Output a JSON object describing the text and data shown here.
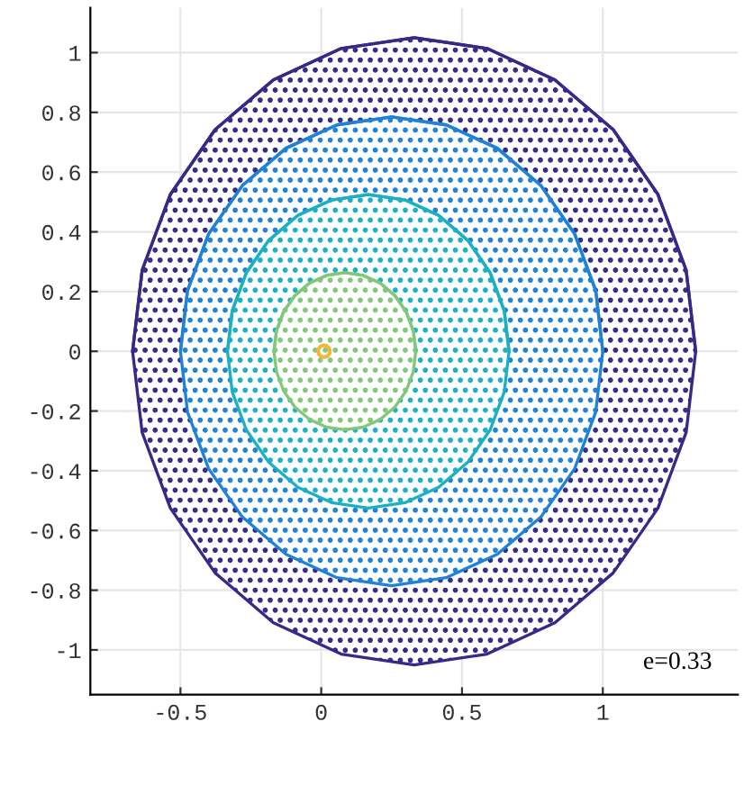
{
  "chart_data": {
    "type": "line",
    "xlim": [
      -0.82,
      1.48
    ],
    "ylim": [
      -1.15,
      1.15
    ],
    "xticks": [
      -0.5,
      0,
      0.5,
      1
    ],
    "yticks": [
      -1,
      -0.8,
      -0.6,
      -0.4,
      -0.2,
      0,
      0.2,
      0.4,
      0.6,
      0.8,
      1
    ],
    "grid": true,
    "marker": "none",
    "line_style": "solid",
    "annotations": [
      "e=0.33"
    ],
    "series": [
      {
        "color": "#352a87",
        "x": [
          -0.67,
          -0.636,
          -0.536,
          -0.377,
          -0.17,
          0.071,
          0.33,
          0.589,
          0.83,
          1.037,
          1.196,
          1.296,
          1.33
        ],
        "values": [
          0,
          0.272,
          0.525,
          0.742,
          0.909,
          1.014,
          1.05,
          1.014,
          0.909,
          0.742,
          0.525,
          0.272,
          0
        ],
        "upper": [
          0,
          0.272,
          0.525,
          0.742,
          0.909,
          1.014,
          1.05,
          1.014,
          0.909,
          0.742,
          0.525,
          0.272,
          0
        ],
        "lower": [
          0,
          -0.272,
          -0.525,
          -0.742,
          -0.909,
          -1.014,
          -1.05,
          -1.014,
          -0.909,
          -0.742,
          -0.525,
          -0.272,
          0
        ]
      },
      {
        "color": "#1f82d8",
        "x": [
          -0.5,
          -0.475,
          -0.4,
          -0.28,
          -0.125,
          0.056,
          0.25,
          0.444,
          0.625,
          0.78,
          0.9,
          0.975,
          1.0
        ],
        "values": [
          0,
          0.203,
          0.393,
          0.555,
          0.68,
          0.758,
          0.785,
          0.758,
          0.68,
          0.555,
          0.393,
          0.203,
          0
        ],
        "upper": [
          0,
          0.203,
          0.393,
          0.555,
          0.68,
          0.758,
          0.785,
          0.758,
          0.68,
          0.555,
          0.393,
          0.203,
          0
        ],
        "lower": [
          0,
          -0.203,
          -0.393,
          -0.555,
          -0.68,
          -0.758,
          -0.785,
          -0.758,
          -0.68,
          -0.555,
          -0.393,
          -0.203,
          0
        ]
      },
      {
        "color": "#1bb0c4",
        "x": [
          -0.333,
          -0.316,
          -0.266,
          -0.187,
          -0.083,
          0.038,
          0.167,
          0.297,
          0.417,
          0.521,
          0.6,
          0.65,
          0.667
        ],
        "values": [
          0,
          0.136,
          0.263,
          0.371,
          0.455,
          0.507,
          0.525,
          0.507,
          0.455,
          0.371,
          0.263,
          0.136,
          0
        ],
        "upper": [
          0,
          0.136,
          0.263,
          0.371,
          0.455,
          0.507,
          0.525,
          0.507,
          0.455,
          0.371,
          0.263,
          0.136,
          0
        ],
        "lower": [
          0,
          -0.136,
          -0.263,
          -0.371,
          -0.455,
          -0.507,
          -0.525,
          -0.507,
          -0.455,
          -0.371,
          -0.263,
          -0.136,
          0
        ]
      },
      {
        "color": "#82c878",
        "x": [
          -0.168,
          -0.159,
          -0.134,
          -0.094,
          -0.042,
          0.019,
          0.084,
          0.149,
          0.21,
          0.262,
          0.302,
          0.327,
          0.336
        ],
        "values": [
          0,
          0.068,
          0.132,
          0.186,
          0.228,
          0.254,
          0.263,
          0.254,
          0.228,
          0.186,
          0.132,
          0.068,
          0
        ],
        "upper": [
          0,
          0.068,
          0.132,
          0.186,
          0.228,
          0.254,
          0.263,
          0.254,
          0.228,
          0.186,
          0.132,
          0.068,
          0
        ],
        "lower": [
          0,
          -0.068,
          -0.132,
          -0.186,
          -0.228,
          -0.254,
          -0.263,
          -0.254,
          -0.228,
          -0.186,
          -0.132,
          -0.068,
          0
        ]
      },
      {
        "type": "scatter",
        "marker": "circle",
        "color": "#f4b53a",
        "x": [
          0.01
        ],
        "values": [
          0
        ]
      }
    ]
  }
}
